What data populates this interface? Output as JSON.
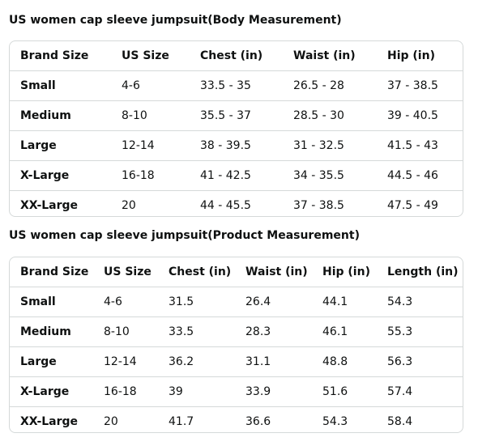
{
  "body_table": {
    "title": "US women cap sleeve jumpsuit(Body Measurement)",
    "headers": [
      "Brand Size",
      "US Size",
      "Chest (in)",
      "Waist (in)",
      "Hip (in)"
    ],
    "rows": [
      [
        "Small",
        "4-6",
        "33.5 - 35",
        "26.5 - 28",
        "37 - 38.5"
      ],
      [
        "Medium",
        "8-10",
        "35.5 - 37",
        "28.5 - 30",
        "39 - 40.5"
      ],
      [
        "Large",
        "12-14",
        "38 - 39.5",
        "31 - 32.5",
        "41.5 - 43"
      ],
      [
        "X-Large",
        "16-18",
        "41 - 42.5",
        "34 - 35.5",
        "44.5 - 46"
      ],
      [
        "XX-Large",
        "20",
        "44 - 45.5",
        "37 - 38.5",
        "47.5 - 49"
      ]
    ]
  },
  "product_table": {
    "title": "US women cap sleeve jumpsuit(Product Measurement)",
    "headers": [
      "Brand Size",
      "US Size",
      "Chest (in)",
      "Waist (in)",
      "Hip (in)",
      "Length (in)"
    ],
    "rows": [
      [
        "Small",
        "4-6",
        "31.5",
        "26.4",
        "44.1",
        "54.3"
      ],
      [
        "Medium",
        "8-10",
        "33.5",
        "28.3",
        "46.1",
        "55.3"
      ],
      [
        "Large",
        "12-14",
        "36.2",
        "31.1",
        "48.8",
        "56.3"
      ],
      [
        "X-Large",
        "16-18",
        "39",
        "33.9",
        "51.6",
        "57.4"
      ],
      [
        "XX-Large",
        "20",
        "41.7",
        "36.6",
        "54.3",
        "58.4"
      ]
    ]
  }
}
